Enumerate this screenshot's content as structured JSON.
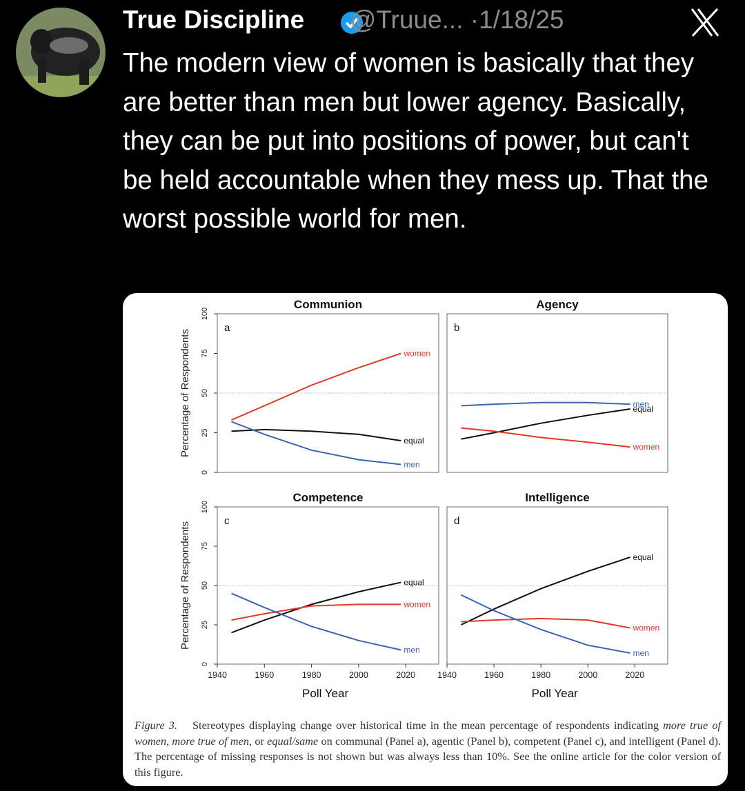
{
  "tweet": {
    "author": "True Discipline",
    "handle": "@Truue...",
    "separator": "·",
    "date": "1/18/25",
    "text": "The modern view of women is basically that they are better than men but lower agency. Basically, they can be put into positions of power, but can't be held accountable when they mess up. That the worst possible world for men."
  },
  "chart_data": [
    {
      "type": "line",
      "title": "Communion",
      "panel_label": "a",
      "ylabel": "Percentage of Respondents",
      "x": [
        1946,
        1960,
        1980,
        2000,
        2018
      ],
      "xlim": [
        1940,
        2034
      ],
      "ylim": [
        0,
        100
      ],
      "yticks": [
        0,
        25,
        50,
        75,
        100
      ],
      "hline": 50,
      "series": [
        {
          "name": "women",
          "color": "#e0392b",
          "values": [
            33,
            42,
            55,
            66,
            75
          ]
        },
        {
          "name": "equal",
          "color": "#111111",
          "values": [
            26,
            27,
            26,
            24,
            20
          ]
        },
        {
          "name": "men",
          "color": "#3b64b0",
          "values": [
            32,
            24,
            14,
            8,
            5
          ]
        }
      ]
    },
    {
      "type": "line",
      "title": "Agency",
      "panel_label": "b",
      "x": [
        1946,
        1960,
        1980,
        2000,
        2018
      ],
      "xlim": [
        1940,
        2034
      ],
      "ylim": [
        0,
        100
      ],
      "hline": 50,
      "series": [
        {
          "name": "men",
          "color": "#3b64b0",
          "values": [
            42,
            43,
            44,
            44,
            43
          ]
        },
        {
          "name": "equal",
          "color": "#111111",
          "values": [
            21,
            25,
            31,
            36,
            40
          ]
        },
        {
          "name": "women",
          "color": "#e0392b",
          "values": [
            28,
            26,
            22,
            19,
            16
          ]
        }
      ]
    },
    {
      "type": "line",
      "title": "Competence",
      "panel_label": "c",
      "ylabel": "Percentage of Respondents",
      "xlabel": "Poll Year",
      "x": [
        1946,
        1960,
        1980,
        2000,
        2018
      ],
      "xlim": [
        1940,
        2034
      ],
      "ylim": [
        0,
        100
      ],
      "yticks": [
        0,
        25,
        50,
        75,
        100
      ],
      "xticks": [
        1940,
        1960,
        1980,
        2000,
        2020
      ],
      "hline": 50,
      "series": [
        {
          "name": "equal",
          "color": "#111111",
          "values": [
            20,
            28,
            38,
            46,
            52
          ]
        },
        {
          "name": "women",
          "color": "#e0392b",
          "values": [
            28,
            32,
            37,
            38,
            38
          ]
        },
        {
          "name": "men",
          "color": "#3b64b0",
          "values": [
            45,
            36,
            24,
            15,
            9
          ]
        }
      ]
    },
    {
      "type": "line",
      "title": "Intelligence",
      "panel_label": "d",
      "xlabel": "Poll Year",
      "x": [
        1946,
        1960,
        1980,
        2000,
        2018
      ],
      "xlim": [
        1940,
        2034
      ],
      "ylim": [
        0,
        100
      ],
      "xticks": [
        1940,
        1960,
        1980,
        2000,
        2020
      ],
      "hline": 50,
      "series": [
        {
          "name": "equal",
          "color": "#111111",
          "values": [
            25,
            35,
            48,
            59,
            68
          ]
        },
        {
          "name": "women",
          "color": "#e0392b",
          "values": [
            27,
            28,
            29,
            28,
            23
          ]
        },
        {
          "name": "men",
          "color": "#3b64b0",
          "values": [
            44,
            34,
            22,
            12,
            7
          ]
        }
      ]
    }
  ],
  "caption": {
    "label": "Figure 3.",
    "segments": [
      {
        "text": "Stereotypes displaying change over historical time in the mean percentage of respondents indicating ",
        "italic": false
      },
      {
        "text": "more true of women, more true of men,",
        "italic": true
      },
      {
        "text": " or ",
        "italic": false
      },
      {
        "text": "equal/same",
        "italic": true
      },
      {
        "text": " on communal (Panel a), agentic (Panel b), competent (Panel c), and intelligent (Panel d). The percentage of missing responses is not shown but was always less than 10%. See the online article for the color version of this figure.",
        "italic": false
      }
    ]
  }
}
